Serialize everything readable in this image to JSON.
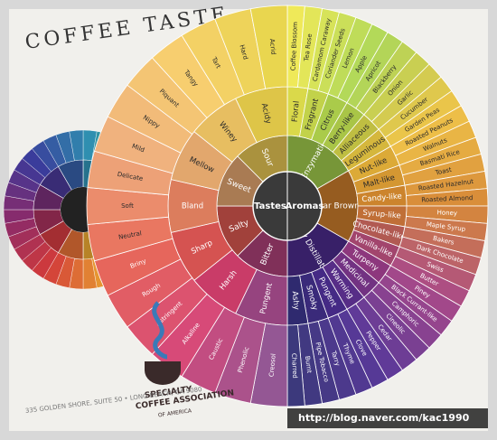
{
  "poster": {
    "title": "COFFEE TASTE",
    "address": "335 GOLDEN SHORE, SUITE 50 • LONG BEACH, CA 9080",
    "logo": [
      "SPECIALTY",
      "COFFEE ASSOCIATION",
      "OF AMERICA"
    ]
  },
  "wheel": {
    "center": [
      "Tastes",
      "Aromas"
    ],
    "aromas": {
      "inner": [
        "Enzymatic",
        "Sugar Browning",
        "Dry Distillation"
      ],
      "middle": [
        "Floral",
        "Fragrant",
        "Citrus",
        "Berry-like",
        "Alliaceous",
        "Leguminous",
        "Nut-like",
        "Malt-like",
        "Candy-like",
        "Syrup-like",
        "Chocolate-like",
        "Vanilla-like",
        "Turpeny",
        "Medicinal",
        "Warming",
        "Pungent",
        "Smoky",
        "Ashy"
      ],
      "outer": [
        "Coffee Blossom",
        "Tea Rose",
        "Cardamom Caraway",
        "Coriander Seeds",
        "Lemon",
        "Apple",
        "Apricot",
        "Blackberry",
        "Onion",
        "Garlic",
        "Cucumber",
        "Garden Peas",
        "Roasted Peanuts",
        "Walnuts",
        "Basmati Rice",
        "Toast",
        "Roasted Hazelnut",
        "Roasted Almond",
        "Honey",
        "Maple Syrup",
        "Bakers",
        "Dark Chocolate",
        "Swiss",
        "Butter",
        "Piney",
        "Black Currant-like",
        "Camphoric",
        "Cineolic",
        "Cedar",
        "Pepper",
        "Clove",
        "Thyme",
        "Tarry",
        "Pipe Tobacco",
        "Burnt",
        "Charred"
      ]
    },
    "tastes": {
      "inner": [
        "Bitter",
        "Salty",
        "Sweet",
        "Sour"
      ],
      "middle": [
        "Pungent",
        "Harsh",
        "Sharp",
        "Bland",
        "Mellow",
        "Winey",
        "Acidy"
      ],
      "outer": [
        "Creosol",
        "Phenolic",
        "Caustic",
        "Alkaline",
        "Astringent",
        "Rough",
        "Briny",
        "Neutral",
        "Soft",
        "Delicate",
        "Mild",
        "Nippy",
        "Piquant",
        "Tangy",
        "Tart",
        "Hard",
        "Acrid"
      ]
    }
  },
  "watermark": "http://blog.naver.com/kac1990"
}
